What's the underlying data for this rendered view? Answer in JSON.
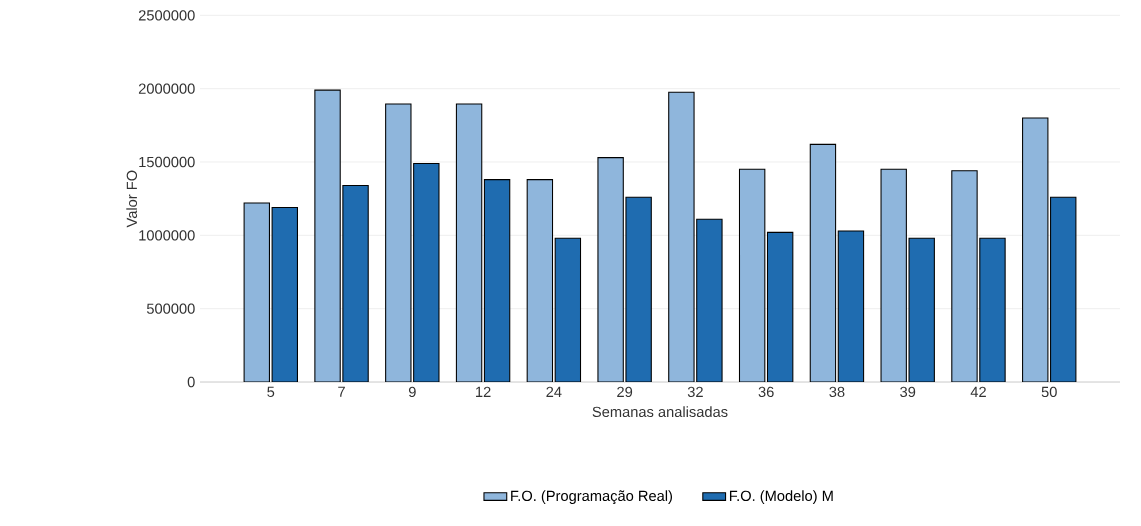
{
  "chart_data": {
    "type": "bar",
    "xlabel": "Semanas analisadas",
    "ylabel": "Valor FO",
    "categories": [
      "5",
      "7",
      "9",
      "12",
      "24",
      "29",
      "32",
      "36",
      "38",
      "39",
      "42",
      "50"
    ],
    "series": [
      {
        "name": "F.O. (Programação Real)",
        "color": "#8fb6dc",
        "values": [
          1220000,
          1990000,
          1895000,
          1895000,
          1380000,
          1530000,
          1975000,
          1450000,
          1620000,
          1450000,
          1440000,
          1800000
        ]
      },
      {
        "name": "F.O. (Modelo) M",
        "color": "#1f6cb0",
        "values": [
          1190000,
          1340000,
          1490000,
          1380000,
          980000,
          1260000,
          1110000,
          1020000,
          1030000,
          980000,
          980000,
          1260000
        ]
      }
    ],
    "ylim": [
      0,
      2500000
    ],
    "yticks": [
      0,
      500000,
      1000000,
      1500000,
      2000000,
      2500000
    ],
    "grid": "y",
    "legend": "bottom"
  }
}
